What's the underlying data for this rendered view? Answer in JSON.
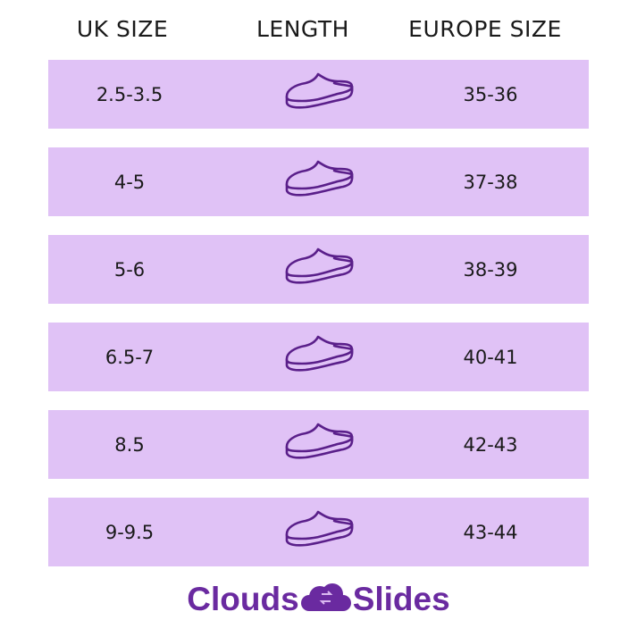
{
  "headers": {
    "uk": "UK SIZE",
    "length": "LENGTH",
    "europe": "EUROPE SIZE"
  },
  "rows": [
    {
      "uk": "2.5-3.5",
      "europe": "35-36"
    },
    {
      "uk": "4-5",
      "europe": "37-38"
    },
    {
      "uk": "5-6",
      "europe": "38-39"
    },
    {
      "uk": "6.5-7",
      "europe": "40-41"
    },
    {
      "uk": "8.5",
      "europe": "42-43"
    },
    {
      "uk": "9-9.5",
      "europe": "43-44"
    }
  ],
  "logo": {
    "left": "Clouds",
    "right": "Slides"
  },
  "colors": {
    "row": "#e0c2f6",
    "accent": "#6a2aa0",
    "icon": "#5a1f8a"
  },
  "icons": {
    "length": "slipper-shoe-icon",
    "logo": "cloud-logo-icon"
  }
}
